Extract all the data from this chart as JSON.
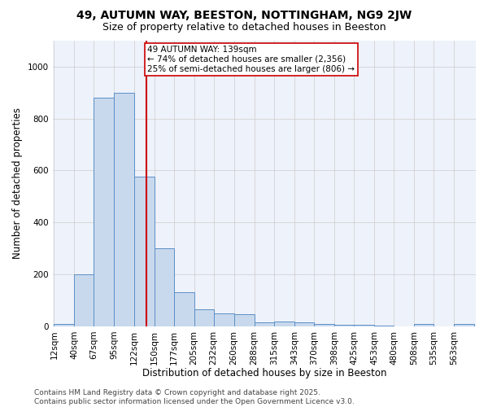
{
  "title": "49, AUTUMN WAY, BEESTON, NOTTINGHAM, NG9 2JW",
  "subtitle": "Size of property relative to detached houses in Beeston",
  "xlabel": "Distribution of detached houses by size in Beeston",
  "ylabel": "Number of detached properties",
  "bins": [
    12,
    40,
    67,
    95,
    122,
    150,
    177,
    205,
    232,
    260,
    288,
    315,
    343,
    370,
    398,
    425,
    453,
    480,
    508,
    535,
    563
  ],
  "values": [
    10,
    200,
    880,
    900,
    575,
    300,
    130,
    65,
    50,
    47,
    15,
    18,
    15,
    10,
    5,
    5,
    3,
    0,
    10,
    0,
    10
  ],
  "bar_color": "#c9d9ed",
  "bar_edge_color": "#5b8fc7",
  "vline_x": 139,
  "vline_color": "#cc0000",
  "annotation_text": "49 AUTUMN WAY: 139sqm\n← 74% of detached houses are smaller (2,356)\n25% of semi-detached houses are larger (806) →",
  "annotation_box_color": "#ffffff",
  "annotation_box_edge": "#cc0000",
  "ylim": [
    0,
    1100
  ],
  "yticks": [
    0,
    200,
    400,
    600,
    800,
    1000
  ],
  "background_color": "#eef2fa",
  "footer_text": "Contains HM Land Registry data © Crown copyright and database right 2025.\nContains public sector information licensed under the Open Government Licence v3.0.",
  "title_fontsize": 10,
  "subtitle_fontsize": 9,
  "label_fontsize": 8.5,
  "tick_fontsize": 7.5,
  "footer_fontsize": 6.5,
  "annotation_fontsize": 7.5
}
